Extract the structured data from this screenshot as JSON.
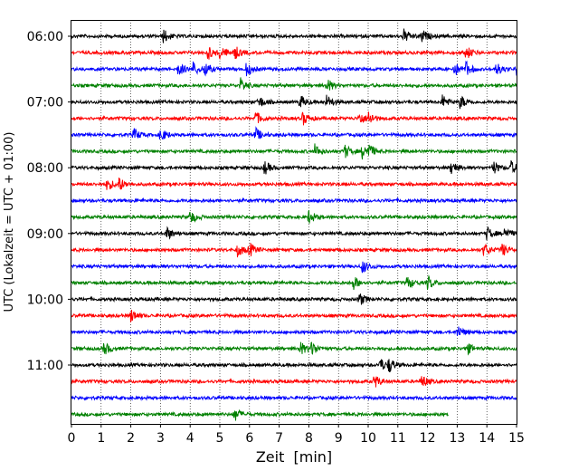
{
  "chart_data": {
    "type": "line",
    "subtype": "helicorder",
    "xlabel": "Zeit  [min]",
    "ylabel": "UTC (Lokalzeit = UTC + 01:00)",
    "xlim": [
      0,
      15
    ],
    "x_ticks": [
      "0",
      "1",
      "2",
      "3",
      "4",
      "5",
      "6",
      "7",
      "8",
      "9",
      "10",
      "11",
      "12",
      "13",
      "14",
      "15"
    ],
    "y_tick_labels": [
      "06:00",
      "07:00",
      "08:00",
      "09:00",
      "10:00",
      "11:00"
    ],
    "trace_interval_min": 15,
    "start_time": "06:00",
    "grid": "vertical dotted at each minute",
    "trace_colors": [
      "#000000",
      "#ff0000",
      "#0000ff",
      "#008000"
    ],
    "rows": [
      {
        "label": "06:00",
        "end_min": 15,
        "events": [
          3.1,
          11.2,
          11.8
        ]
      },
      {
        "label": "",
        "end_min": 15,
        "events": [
          4.6,
          5.0,
          5.5,
          13.3
        ]
      },
      {
        "label": "",
        "end_min": 15,
        "events": [
          3.6,
          4.1,
          4.5,
          5.9,
          12.9,
          13.3,
          14.3,
          15.0
        ]
      },
      {
        "label": "",
        "end_min": 15,
        "events": [
          5.7,
          8.6
        ]
      },
      {
        "label": "07:00",
        "end_min": 15,
        "events": [
          6.3,
          7.7,
          8.6,
          12.5,
          13.1
        ]
      },
      {
        "label": "",
        "end_min": 15,
        "events": [
          6.2,
          7.8,
          9.7,
          10.0
        ]
      },
      {
        "label": "",
        "end_min": 15,
        "events": [
          2.1,
          3.0,
          6.2
        ]
      },
      {
        "label": "",
        "end_min": 15,
        "events": [
          8.2,
          9.2,
          9.8,
          10.0
        ]
      },
      {
        "label": "08:00",
        "end_min": 15,
        "events": [
          6.5,
          12.8,
          14.2,
          14.8
        ]
      },
      {
        "label": "",
        "end_min": 15,
        "events": [
          1.2,
          1.6
        ]
      },
      {
        "label": "",
        "end_min": 15,
        "events": []
      },
      {
        "label": "",
        "end_min": 15,
        "events": [
          4.0,
          8.0
        ]
      },
      {
        "label": "09:00",
        "end_min": 15,
        "events": [
          3.2,
          14.0,
          14.6
        ]
      },
      {
        "label": "",
        "end_min": 15,
        "events": [
          5.6,
          6.0,
          13.9,
          14.5
        ]
      },
      {
        "label": "",
        "end_min": 15,
        "events": [
          9.8
        ]
      },
      {
        "label": "",
        "end_min": 15,
        "events": [
          9.5,
          11.3,
          12.0
        ]
      },
      {
        "label": "10:00",
        "end_min": 15,
        "events": [
          9.7
        ]
      },
      {
        "label": "",
        "end_min": 15,
        "events": [
          2.0
        ]
      },
      {
        "label": "",
        "end_min": 15,
        "events": [
          13.0
        ]
      },
      {
        "label": "",
        "end_min": 15,
        "events": [
          1.1,
          7.7,
          8.1,
          13.3
        ]
      },
      {
        "label": "11:00",
        "end_min": 15,
        "events": [
          10.4,
          10.7
        ]
      },
      {
        "label": "",
        "end_min": 15,
        "events": [
          10.2,
          11.8
        ]
      },
      {
        "label": "",
        "end_min": 15,
        "events": []
      },
      {
        "label": "",
        "end_min": 12.7,
        "events": [
          5.5
        ]
      }
    ]
  }
}
